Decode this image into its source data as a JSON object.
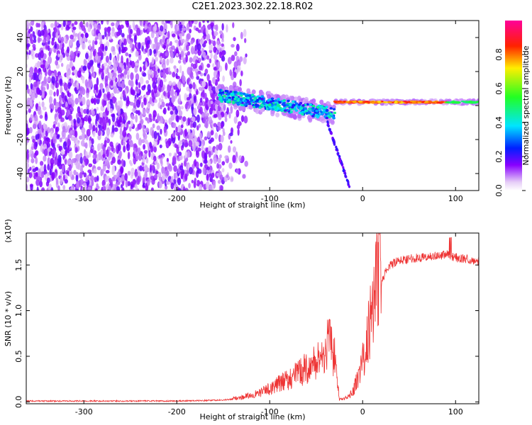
{
  "title": "C2E1.2023.302.22.18.R02",
  "chart_data": [
    {
      "type": "heatmap",
      "xlabel": "Height of straight line (km)",
      "ylabel": "Frequency (Hz)",
      "xlim": [
        -362,
        125
      ],
      "ylim": [
        -50,
        50
      ],
      "xticks": [
        -300,
        -200,
        -100,
        0,
        100
      ],
      "xtick_labels": [
        "-300",
        "-200",
        "-100",
        "0",
        "100"
      ],
      "yticks": [
        -40,
        -20,
        0,
        20,
        40
      ],
      "ytick_labels": [
        "-40",
        "-20",
        "0",
        "20",
        "40"
      ],
      "colorbar": {
        "label": "Normalized spectral amplitude",
        "range": [
          0,
          1
        ],
        "ticks": [
          0.0,
          0.2,
          0.4,
          0.6,
          0.8
        ],
        "tick_labels": [
          "0.0",
          "0.2",
          "0.4",
          "0.6",
          "0.8"
        ]
      },
      "features": {
        "noise_region_x": [
          -362,
          -150
        ],
        "strong_line_segments": [
          {
            "x": [
              -155,
              -30
            ],
            "y": [
              6,
              -5
            ],
            "amplitude": 0.45
          },
          {
            "x": [
              -30,
              125
            ],
            "y": [
              2,
              2
            ],
            "amplitude": 0.9
          }
        ],
        "diagonal_tail": {
          "x": [
            -38,
            -14
          ],
          "y": [
            -10,
            -48
          ]
        }
      }
    },
    {
      "type": "line",
      "xlabel": "Height of straight line (km)",
      "ylabel": "SNR (10 * v/v)",
      "y_scale_label": "(x10⁴)",
      "xlim": [
        -362,
        125
      ],
      "ylim": [
        -0.02,
        1.85
      ],
      "xticks": [
        -300,
        -200,
        -100,
        0,
        100
      ],
      "xtick_labels": [
        "-300",
        "-200",
        "-100",
        "0",
        "100"
      ],
      "yticks": [
        0.0,
        0.5,
        1.0,
        1.5
      ],
      "ytick_labels": [
        "0.0",
        "0.5",
        "1.0",
        "1.5"
      ],
      "series": [
        {
          "color": "#ee3333",
          "x": [
            -362,
            -300,
            -200,
            -150,
            -130,
            -110,
            -100,
            -90,
            -80,
            -70,
            -60,
            -50,
            -45,
            -40,
            -35,
            -30,
            -25,
            -20,
            -15,
            -10,
            -5,
            0,
            5,
            10,
            15,
            20,
            25,
            30,
            40,
            50,
            60,
            70,
            80,
            90,
            95,
            100,
            110,
            125
          ],
          "y": [
            0.01,
            0.01,
            0.01,
            0.02,
            0.04,
            0.08,
            0.12,
            0.16,
            0.2,
            0.25,
            0.3,
            0.35,
            0.4,
            0.45,
            0.5,
            0.38,
            0.02,
            0.03,
            0.05,
            0.1,
            0.22,
            0.35,
            0.55,
            0.85,
            1.1,
            1.3,
            1.42,
            1.5,
            1.55,
            1.57,
            1.58,
            1.59,
            1.6,
            1.62,
            1.6,
            1.58,
            1.57,
            1.54
          ]
        }
      ]
    }
  ]
}
